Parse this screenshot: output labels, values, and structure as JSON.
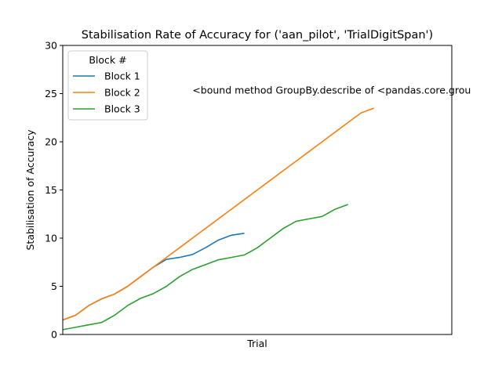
{
  "chart_data": {
    "type": "line",
    "title": "Stabilisation Rate of Accuracy for ('aan_pilot', 'TrialDigitSpan')",
    "xlabel": "Trial",
    "ylabel": "Stabilisation of Accuracy",
    "xlim": [
      0,
      30
    ],
    "ylim": [
      0,
      30
    ],
    "yticks": [
      0,
      5,
      10,
      15,
      20,
      25,
      30
    ],
    "xticks_visible": false,
    "grid": false,
    "legend": {
      "title": "Block #",
      "placement": "top-left"
    },
    "annotation": {
      "text": "<bound method GroupBy.describe of <pandas.core.grou",
      "x": 10,
      "y": 25
    },
    "series": [
      {
        "name": "Block 1",
        "color": "#1f77b4",
        "x": [
          0,
          1,
          2,
          3,
          4,
          5,
          6,
          7,
          8,
          9,
          10,
          11,
          12,
          13,
          14
        ],
        "y": [
          1.5,
          2.0,
          3.0,
          3.7,
          4.2,
          5.0,
          6.0,
          7.0,
          7.8,
          8.0,
          8.3,
          9.0,
          9.8,
          10.3,
          10.5
        ]
      },
      {
        "name": "Block 2",
        "color": "#ff7f0e",
        "x": [
          0,
          1,
          2,
          3,
          4,
          5,
          6,
          7,
          8,
          9,
          10,
          11,
          12,
          13,
          14,
          15,
          16,
          17,
          18,
          19,
          20,
          21,
          22,
          23,
          24
        ],
        "y": [
          1.5,
          2.0,
          3.0,
          3.7,
          4.2,
          5.0,
          6.0,
          7.0,
          8.0,
          9.0,
          10.0,
          11.0,
          12.0,
          13.0,
          14.0,
          15.0,
          16.0,
          17.0,
          18.0,
          19.0,
          20.0,
          21.0,
          22.0,
          23.0,
          23.5
        ]
      },
      {
        "name": "Block 3",
        "color": "#2ca02c",
        "x": [
          0,
          1,
          2,
          3,
          4,
          5,
          6,
          7,
          8,
          9,
          10,
          11,
          12,
          13,
          14,
          15,
          16,
          17,
          18,
          19,
          20,
          21,
          22
        ],
        "y": [
          0.5,
          0.75,
          1.0,
          1.25,
          2.0,
          3.0,
          3.75,
          4.25,
          5.0,
          6.0,
          6.75,
          7.25,
          7.75,
          8.0,
          8.25,
          9.0,
          10.0,
          11.0,
          11.75,
          12.0,
          12.25,
          13.0,
          13.5
        ]
      }
    ]
  }
}
